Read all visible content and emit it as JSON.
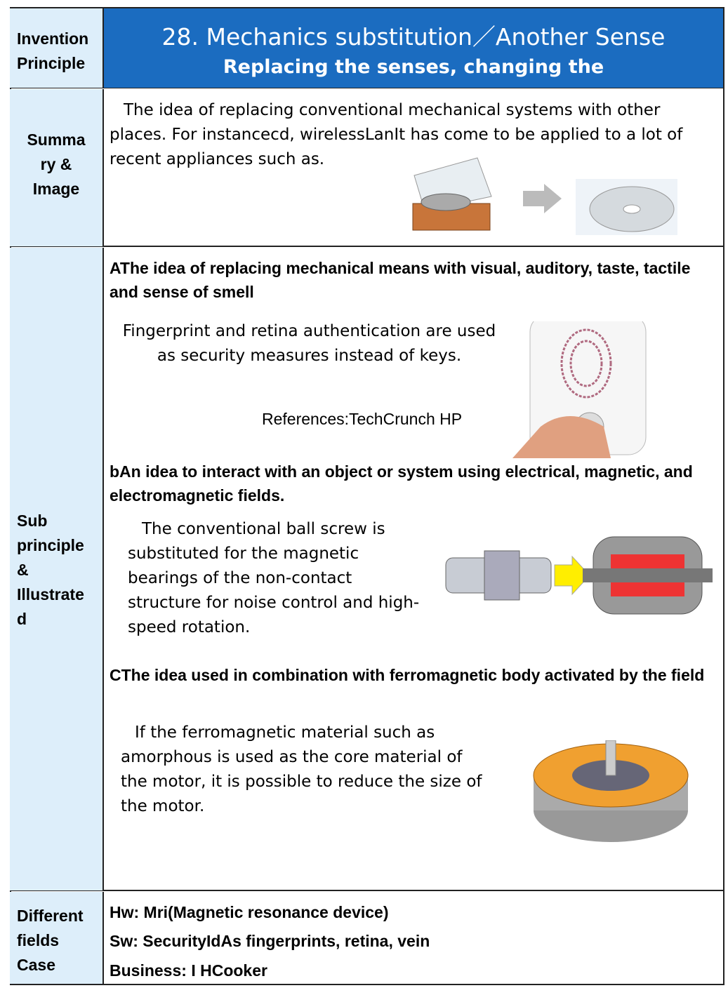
{
  "header": {
    "label": "Invention Principle",
    "title": "28. Mechanics substitution／Another Sense",
    "subtitle": "Replacing the senses, changing the"
  },
  "summary": {
    "label": "Summary & Image",
    "text": "The idea of replacing conventional mechanical systems with other places. For instancecd, wirelessLanIt has come to be applied to a lot of recent appliances such as."
  },
  "sub_principles": {
    "label": "Sub principle & Illustrated",
    "items": [
      {
        "heading": "AThe idea of replacing mechanical means with visual, auditory, taste, tactile and sense of smell",
        "text": "Fingerprint and retina authentication are used as security measures instead of keys.",
        "reference": "References:TechCrunch HP"
      },
      {
        "heading": "bAn idea to interact with an object or system using electrical, magnetic, and electromagnetic fields.",
        "text": "The conventional ball screw is substituted for the magnetic bearings of the non-contact structure for noise control and high-speed rotation."
      },
      {
        "heading": "CThe idea used in combination with ferromagnetic body activated by the field",
        "text": "If the ferromagnetic material such as amorphous is used as the core material of the motor, it is possible to reduce the size of the motor."
      }
    ]
  },
  "different_fields": {
    "label": "Different fields Case",
    "cases": [
      "Hw: Mri(Magnetic resonance device)",
      "Sw: SecurityIdAs fingerprints, retina, vein",
      "Business: I HCooker"
    ]
  }
}
